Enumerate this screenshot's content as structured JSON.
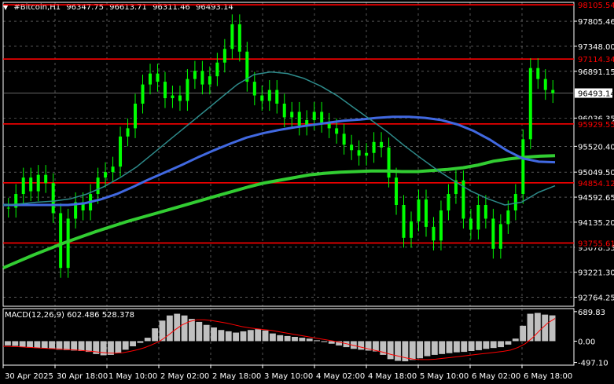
{
  "header": {
    "symbol": "#Bitcoin,H1",
    "open": "96347.75",
    "high": "96613.71",
    "low": "96311.46",
    "close": "96493.14"
  },
  "macd": {
    "label": "MACD(12,26,9)",
    "macd_value": "602.486",
    "signal_value": "528.378"
  },
  "colors": {
    "background": "#000000",
    "candle": "#00ff00",
    "hline": "#ff0000",
    "ma_green": "#32cd32",
    "ma_blue": "#4169e1",
    "ma_teal": "#2e8b8b",
    "macd_hist": "#c0c0c0",
    "signal": "#ff0000",
    "grid": "#ffffff",
    "text": "#ffffff"
  },
  "chart_data": {
    "type": "line",
    "title": "#Bitcoin,H1",
    "ylim": [
      92600,
      98150
    ],
    "y_ticks": [
      "97805.46",
      "97348.00",
      "96891.15",
      "96036.35",
      "95520.40",
      "95049.50",
      "94592.65",
      "94135.20",
      "93678.35",
      "93221.30",
      "92764.25"
    ],
    "y_tick_values": [
      97805.46,
      97348.0,
      96891.15,
      96036.35,
      95520.4,
      95049.5,
      94592.65,
      94135.2,
      93678.35,
      93221.3,
      92764.25
    ],
    "x_labels": [
      "30 Apr 2025",
      "30 Apr 18:00",
      "1 May 10:00",
      "2 May 02:00",
      "2 May 18:00",
      "3 May 10:00",
      "4 May 02:00",
      "4 May 18:00",
      "5 May 10:00",
      "6 May 02:00",
      "6 May 18:00"
    ],
    "horizontal_levels": [
      {
        "value": 98105.54,
        "label": "98105.54"
      },
      {
        "value": 97114.34,
        "label": "97114.34"
      },
      {
        "value": 95929.55,
        "label": "95929.55"
      },
      {
        "value": 94854.12,
        "label": "94854.12"
      },
      {
        "value": 93755.61,
        "label": "93755.61"
      }
    ],
    "current_price": {
      "value": 96493.14,
      "label": "96493.14"
    },
    "price_series": [
      94400,
      94650,
      94950,
      94700,
      95000,
      94850,
      94300,
      93300,
      94200,
      94500,
      94350,
      94650,
      94950,
      95050,
      95150,
      95700,
      95850,
      96300,
      96650,
      96850,
      96700,
      96400,
      96450,
      96350,
      96750,
      96900,
      96650,
      96800,
      97050,
      97300,
      97750,
      97250,
      96700,
      96450,
      96350,
      96550,
      96300,
      96050,
      96150,
      95900,
      96000,
      96150,
      95950,
      95850,
      95750,
      95550,
      95450,
      95350,
      95400,
      95600,
      95500,
      94950,
      94450,
      93850,
      94150,
      94550,
      94050,
      93800,
      94350,
      94650,
      94900,
      94200,
      94000,
      94450,
      94200,
      93650,
      94100,
      94350,
      94650,
      95650,
      96950,
      96750,
      96550,
      96493.14
    ],
    "series": [
      {
        "name": "",
        "values": [
          93300,
          93420,
          93540,
          93650,
          93760,
          93860,
          93960,
          94050,
          94140,
          94220,
          94300,
          94380,
          94460,
          94540,
          94620,
          94700,
          94780,
          94850,
          94900,
          94950,
          95000,
          95030,
          95050,
          95060,
          95070,
          95070,
          95060,
          95060,
          95080,
          95100,
          95130,
          95180,
          95250,
          95290,
          95320,
          95340,
          95350
        ]
      },
      {
        "name": "",
        "values": [
          94450,
          94450,
          94450,
          94450,
          94450,
          94480,
          94550,
          94650,
          94780,
          94920,
          95050,
          95180,
          95320,
          95450,
          95570,
          95680,
          95760,
          95820,
          95870,
          95910,
          95950,
          95990,
          96010,
          96040,
          96060,
          96060,
          96040,
          96000,
          95920,
          95800,
          95640,
          95450,
          95300,
          95240,
          95230
        ]
      },
      {
        "name": "",
        "values": [
          94450,
          94470,
          94500,
          94520,
          94560,
          94650,
          94780,
          94950,
          95150,
          95400,
          95650,
          95900,
          96150,
          96400,
          96650,
          96830,
          96880,
          96850,
          96760,
          96620,
          96440,
          96220,
          96000,
          95780,
          95530,
          95300,
          95080,
          94880,
          94700,
          94560,
          94450,
          94500,
          94680,
          94800
        ]
      }
    ],
    "macd_panel": {
      "ylim": [
        -560,
        760
      ],
      "y_ticks": [
        "689.83",
        "0.00",
        "-497.10"
      ],
      "y_tick_values": [
        689.83,
        0,
        -497.1
      ],
      "histogram": [
        -100,
        -110,
        -130,
        -150,
        -160,
        -170,
        -180,
        -200,
        -210,
        -220,
        -230,
        -250,
        -300,
        -330,
        -320,
        -280,
        -200,
        -120,
        -40,
        80,
        300,
        480,
        600,
        640,
        600,
        520,
        450,
        380,
        320,
        260,
        230,
        200,
        230,
        260,
        280,
        250,
        180,
        140,
        120,
        100,
        80,
        60,
        20,
        -20,
        -60,
        -100,
        -140,
        -180,
        -200,
        -220,
        -240,
        -320,
        -420,
        -460,
        -470,
        -440,
        -400,
        -350,
        -320,
        -300,
        -280,
        -260,
        -250,
        -230,
        -210,
        -180,
        -160,
        -140,
        -80,
        60,
        360,
        640,
        660,
        620,
        602.486
      ],
      "signal": [
        -120,
        -125,
        -130,
        -140,
        -150,
        -160,
        -170,
        -180,
        -190,
        -200,
        -210,
        -225,
        -240,
        -260,
        -275,
        -280,
        -270,
        -240,
        -200,
        -150,
        -80,
        0,
        120,
        260,
        380,
        460,
        500,
        500,
        480,
        450,
        420,
        380,
        340,
        310,
        290,
        270,
        250,
        220,
        190,
        160,
        130,
        100,
        70,
        40,
        10,
        -20,
        -60,
        -100,
        -140,
        -180,
        -220,
        -260,
        -310,
        -350,
        -390,
        -420,
        -430,
        -430,
        -420,
        -400,
        -380,
        -360,
        -340,
        -320,
        -300,
        -280,
        -260,
        -240,
        -210,
        -150,
        -60,
        80,
        260,
        420,
        528.378
      ]
    }
  }
}
